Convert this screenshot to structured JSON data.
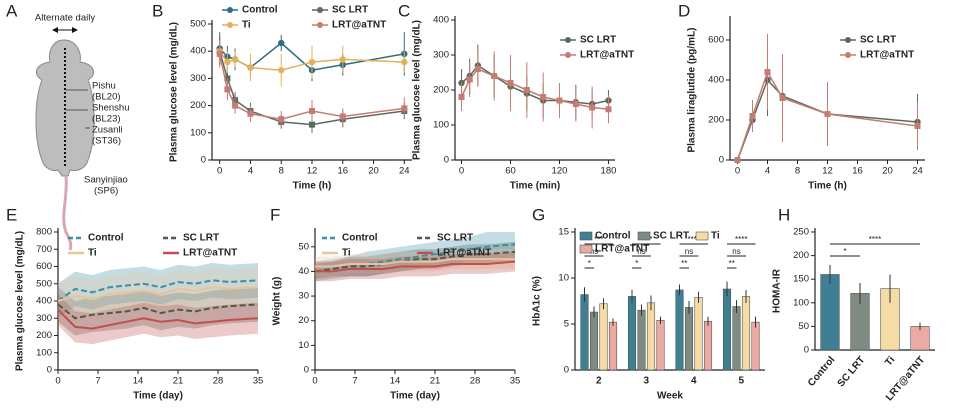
{
  "panel_labels": [
    "A",
    "B",
    "C",
    "D",
    "E",
    "F",
    "G",
    "H"
  ],
  "diagram": {
    "alternate_daily": "Alternate daily",
    "points": [
      {
        "name": "Pishu",
        "code": "(BL20)"
      },
      {
        "name": "Shenshu",
        "code": "(BL23)"
      },
      {
        "name": "Zusanli",
        "code": "(ST36)"
      },
      {
        "name": "Sanyinjiao",
        "code": "(SP6)"
      }
    ]
  },
  "chart_data": [
    {
      "type": "line",
      "x_label": "Time (h)",
      "y_label": "Plasma glucose level (mg/dL)",
      "markers": true,
      "legend": true,
      "x": [
        0,
        1,
        2,
        4,
        8,
        12,
        16,
        24
      ],
      "xlim": [
        -1,
        25
      ],
      "xticks": [
        0,
        4,
        8,
        12,
        16,
        20,
        24
      ],
      "ylim": [
        0,
        500
      ],
      "yticks": [
        0,
        100,
        200,
        300,
        400,
        500
      ],
      "series": [
        {
          "name": "Control",
          "color": "#2e6e80",
          "values": [
            410,
            380,
            370,
            340,
            430,
            330,
            350,
            390
          ],
          "errors": [
            60,
            40,
            40,
            30,
            30,
            40,
            40,
            80
          ]
        },
        {
          "name": "SC LRT",
          "color": "#5b6b5d",
          "values": [
            400,
            300,
            220,
            180,
            140,
            130,
            150,
            180
          ],
          "errors": [
            50,
            40,
            30,
            30,
            25,
            30,
            30,
            30
          ]
        },
        {
          "name": "Ti",
          "color": "#e3b15a",
          "values": [
            400,
            360,
            370,
            340,
            330,
            360,
            370,
            360
          ],
          "errors": [
            40,
            40,
            30,
            50,
            60,
            60,
            50,
            40
          ]
        },
        {
          "name": "LRT@aTNT",
          "color": "#c57c72",
          "values": [
            390,
            260,
            200,
            170,
            150,
            180,
            160,
            190
          ],
          "errors": [
            50,
            40,
            30,
            30,
            30,
            40,
            30,
            40
          ]
        }
      ]
    },
    {
      "type": "line",
      "x_label": "Time (min)",
      "y_label": "Plasma glucose level (mg/dL)",
      "markers": true,
      "legend": true,
      "x": [
        0,
        10,
        20,
        40,
        60,
        80,
        100,
        120,
        140,
        160,
        180
      ],
      "xlim": [
        -8,
        188
      ],
      "xticks": [
        0,
        60,
        120,
        180
      ],
      "ylim": [
        0,
        400
      ],
      "yticks": [
        0,
        100,
        200,
        300,
        400
      ],
      "series": [
        {
          "name": "SC LRT",
          "color": "#5b6b5d",
          "values": [
            220,
            240,
            270,
            240,
            210,
            190,
            170,
            170,
            165,
            160,
            170
          ],
          "errors": [
            40,
            50,
            60,
            60,
            60,
            50,
            50,
            40,
            50,
            40,
            30
          ]
        },
        {
          "name": "LRT@aTNT",
          "color": "#c57c72",
          "values": [
            180,
            230,
            260,
            240,
            220,
            200,
            180,
            170,
            160,
            150,
            145
          ],
          "errors": [
            40,
            50,
            50,
            70,
            80,
            80,
            70,
            50,
            50,
            60,
            40
          ]
        }
      ]
    },
    {
      "type": "line",
      "x_label": "Time (h)",
      "y_label": "Plasma liraglutide (pg/mL)",
      "markers": true,
      "legend": true,
      "x": [
        0,
        2,
        4,
        6,
        12,
        24
      ],
      "xlim": [
        -1,
        25
      ],
      "xticks": [
        0,
        4,
        8,
        12,
        16,
        20,
        24
      ],
      "ylim": [
        0,
        700
      ],
      "yticks": [
        0,
        200,
        400,
        600
      ],
      "series": [
        {
          "name": "SC LRT",
          "color": "#5b6b5d",
          "values": [
            0,
            200,
            400,
            320,
            230,
            190
          ],
          "errors": [
            0,
            60,
            180,
            200,
            150,
            140
          ]
        },
        {
          "name": "LRT@aTNT",
          "color": "#c57c72",
          "values": [
            0,
            220,
            440,
            310,
            230,
            170
          ],
          "errors": [
            0,
            80,
            190,
            220,
            160,
            120
          ]
        }
      ]
    },
    {
      "type": "line",
      "x_label": "Time (day)",
      "y_label": "Plasma glucose level (mg/dL)",
      "markers": false,
      "legend": true,
      "x": [
        0,
        3,
        6,
        9,
        12,
        15,
        18,
        21,
        24,
        27,
        30,
        35
      ],
      "xlim": [
        0,
        35
      ],
      "xticks": [
        0,
        7,
        14,
        21,
        28,
        35
      ],
      "ylim": [
        0,
        800
      ],
      "yticks": [
        0,
        100,
        200,
        300,
        400,
        500,
        600,
        700,
        800
      ],
      "series": [
        {
          "name": "Control",
          "color": "#3a8fa8",
          "dashed": true,
          "values": [
            400,
            470,
            450,
            480,
            490,
            500,
            480,
            510,
            500,
            520,
            510,
            520
          ],
          "lower": [
            300,
            370,
            350,
            380,
            390,
            400,
            380,
            410,
            400,
            420,
            410,
            420
          ],
          "upper": [
            500,
            570,
            550,
            580,
            590,
            600,
            580,
            610,
            600,
            620,
            610,
            620
          ]
        },
        {
          "name": "SC LRT",
          "color": "#4d5a50",
          "dashed": true,
          "values": [
            380,
            300,
            320,
            330,
            340,
            360,
            330,
            350,
            340,
            360,
            370,
            380
          ],
          "lower": [
            280,
            200,
            220,
            230,
            240,
            260,
            230,
            250,
            240,
            260,
            270,
            280
          ],
          "upper": [
            480,
            400,
            420,
            430,
            440,
            460,
            430,
            450,
            440,
            460,
            470,
            480
          ]
        },
        {
          "name": "Ti",
          "color": "#e8c49a",
          "dashed": false,
          "values": [
            400,
            430,
            410,
            440,
            450,
            460,
            440,
            470,
            460,
            480,
            470,
            480
          ],
          "lower": [
            290,
            320,
            300,
            330,
            340,
            350,
            330,
            360,
            350,
            370,
            360,
            370
          ],
          "upper": [
            510,
            540,
            520,
            550,
            560,
            570,
            550,
            580,
            570,
            590,
            580,
            590
          ]
        },
        {
          "name": "LRT@aTNT",
          "color": "#c0504d",
          "dashed": false,
          "values": [
            350,
            250,
            240,
            260,
            280,
            300,
            280,
            290,
            270,
            280,
            290,
            300
          ],
          "lower": [
            260,
            160,
            150,
            170,
            190,
            210,
            190,
            200,
            180,
            190,
            200,
            210
          ],
          "upper": [
            440,
            340,
            330,
            350,
            370,
            390,
            370,
            380,
            360,
            370,
            380,
            390
          ]
        }
      ]
    },
    {
      "type": "line",
      "x_label": "Time (day)",
      "y_label": "Weight (g)",
      "markers": false,
      "legend": true,
      "x": [
        0,
        3,
        6,
        9,
        12,
        15,
        18,
        21,
        24,
        27,
        30,
        35
      ],
      "xlim": [
        0,
        35
      ],
      "xticks": [
        0,
        7,
        14,
        21,
        28,
        35
      ],
      "ylim": [
        0,
        56
      ],
      "yticks": [
        0,
        10,
        20,
        30,
        40,
        50
      ],
      "series": [
        {
          "name": "Control",
          "color": "#3a8fa8",
          "dashed": true,
          "values": [
            40,
            41,
            42,
            43,
            44,
            45,
            46,
            47,
            48,
            49,
            50,
            51
          ],
          "lower": [
            36,
            37,
            38,
            38,
            39,
            40,
            41,
            42,
            43,
            44,
            44,
            45
          ],
          "upper": [
            44,
            45,
            46,
            48,
            49,
            50,
            51,
            52,
            53,
            54,
            56,
            56
          ]
        },
        {
          "name": "SC LRT",
          "color": "#4d5a50",
          "dashed": true,
          "values": [
            40,
            41,
            42,
            42,
            43,
            44,
            45,
            45,
            46,
            47,
            47,
            48
          ],
          "lower": [
            37,
            38,
            38,
            38,
            39,
            40,
            41,
            41,
            42,
            43,
            43,
            44
          ],
          "upper": [
            43,
            44,
            46,
            46,
            47,
            48,
            49,
            49,
            50,
            51,
            51,
            52
          ]
        },
        {
          "name": "Ti",
          "color": "#e8c49a",
          "dashed": false,
          "values": [
            42,
            42,
            43,
            43,
            43,
            44,
            44,
            44,
            45,
            45,
            45,
            45
          ],
          "lower": [
            38,
            38,
            39,
            39,
            39,
            40,
            40,
            40,
            41,
            41,
            41,
            41
          ],
          "upper": [
            46,
            46,
            47,
            47,
            47,
            48,
            48,
            48,
            49,
            49,
            49,
            49
          ]
        },
        {
          "name": "LRT@aTNT",
          "color": "#c0504d",
          "dashed": false,
          "values": [
            40,
            40,
            41,
            41,
            41,
            42,
            42,
            42,
            43,
            43,
            43,
            44
          ],
          "lower": [
            36,
            36,
            37,
            37,
            37,
            38,
            38,
            38,
            39,
            39,
            39,
            40
          ],
          "upper": [
            44,
            44,
            45,
            45,
            45,
            46,
            46,
            46,
            47,
            47,
            47,
            48
          ]
        }
      ]
    },
    {
      "type": "bar",
      "x_label": "Week",
      "y_label": "HbA1c (%)",
      "legend": true,
      "categories": [
        "2",
        "3",
        "4",
        "5"
      ],
      "ylim": [
        0,
        15
      ],
      "yticks": [
        0,
        5,
        10,
        15
      ],
      "annotations": [
        [
          "***",
          "ns",
          "*"
        ],
        [
          "****",
          "ns",
          "*"
        ],
        [
          "****",
          "ns",
          "**"
        ],
        [
          "****",
          "ns",
          "**"
        ]
      ],
      "series": [
        {
          "name": "Control",
          "color": "#3f7f93",
          "values": [
            8.2,
            8.0,
            8.7,
            8.8
          ],
          "errors": [
            0.8,
            0.7,
            0.6,
            0.8
          ]
        },
        {
          "name": "SC LRT",
          "color": "#7d8b80",
          "values": [
            6.3,
            6.5,
            6.8,
            6.9
          ],
          "errors": [
            0.6,
            0.6,
            0.7,
            0.7
          ]
        },
        {
          "name": "Ti",
          "color": "#f4dca4",
          "values": [
            7.2,
            7.3,
            7.9,
            8.0
          ],
          "errors": [
            0.6,
            0.8,
            0.6,
            0.7
          ]
        },
        {
          "name": "LRT@aTNT",
          "color": "#ebaaa2",
          "values": [
            5.2,
            5.4,
            5.3,
            5.2
          ],
          "errors": [
            0.4,
            0.4,
            0.5,
            0.6
          ]
        }
      ]
    },
    {
      "type": "bar",
      "y_label": "HOMA-IR",
      "legend": false,
      "categories": [
        "Control",
        "SC LRT",
        "Ti",
        "LRT@aTNT"
      ],
      "ylim": [
        0,
        250
      ],
      "yticks": [
        0,
        50,
        100,
        150,
        200,
        250
      ],
      "annotations": [
        [
          "****",
          "*"
        ]
      ],
      "colors": [
        "#3f7f93",
        "#7d8b80",
        "#f4dca4",
        "#ebaaa2"
      ],
      "values": [
        160,
        120,
        130,
        50
      ],
      "errors": [
        20,
        22,
        30,
        8
      ]
    }
  ]
}
